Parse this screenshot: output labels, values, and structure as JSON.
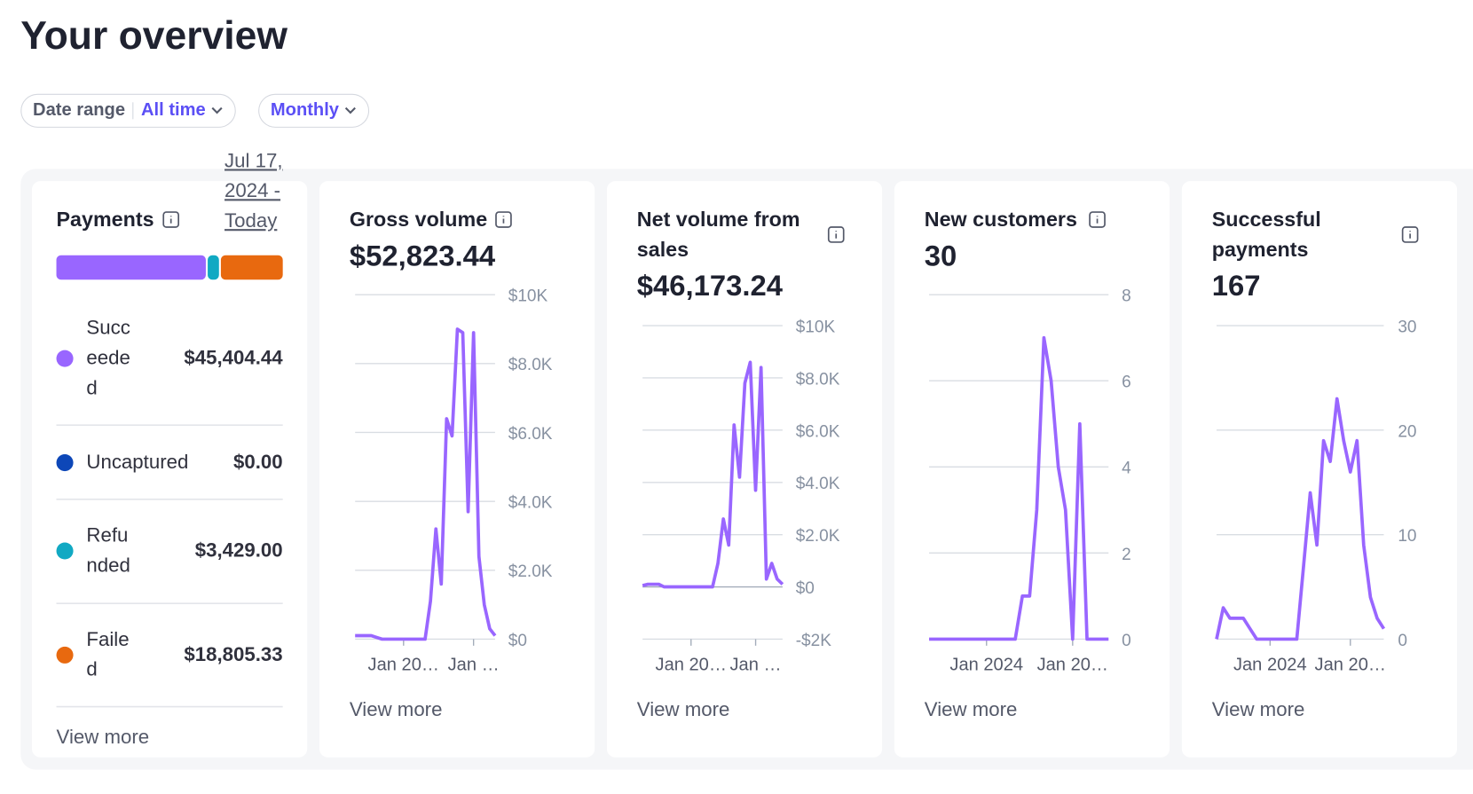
{
  "header": {
    "title": "Your overview"
  },
  "filters": {
    "date_range_label": "Date range",
    "date_range_value": "All time",
    "interval": "Monthly"
  },
  "payments": {
    "title": "Payments",
    "date_link": "Jul 17, 2024 - Today",
    "link": "View more",
    "segments": [
      {
        "name": "Succeeded",
        "value": 45404.44,
        "value_label": "$45,404.44",
        "color": "#9966ff"
      },
      {
        "name": "Uncaptured",
        "value": 0,
        "value_label": "$0.00",
        "color": "#0d47b8"
      },
      {
        "name": "Refunded",
        "value": 3429,
        "value_label": "$3,429.00",
        "color": "#11a9c3"
      },
      {
        "name": "Failed",
        "value": 18805.33,
        "value_label": "$18,805.33",
        "color": "#e8690f"
      }
    ]
  },
  "cards": [
    {
      "title": "Gross volume",
      "total": "$52,823.44",
      "link": "View more",
      "chart": {
        "type": "line",
        "color": "#9966ff",
        "categories": [
          null,
          null,
          null,
          null,
          null,
          null,
          null,
          null,
          null,
          "Jan 20…",
          null,
          null,
          null,
          null,
          null,
          null,
          null,
          null,
          null,
          null,
          null,
          null,
          "Jan …",
          null,
          null,
          null,
          null
        ],
        "values": [
          100,
          100,
          100,
          100,
          50,
          0,
          0,
          0,
          0,
          0,
          0,
          0,
          0,
          0,
          1100,
          3200,
          1600,
          6400,
          5900,
          9000,
          8900,
          3700,
          8900,
          2400,
          1000,
          300,
          100
        ],
        "ylim": [
          0,
          10000
        ],
        "yticks": [
          {
            "value": 0,
            "label": "$0"
          },
          {
            "value": 2000,
            "label": "$2.0K"
          },
          {
            "value": 4000,
            "label": "$4.0K"
          },
          {
            "value": 6000,
            "label": "$6.0K"
          },
          {
            "value": 8000,
            "label": "$8.0K"
          },
          {
            "value": 10000,
            "label": "$10K"
          }
        ]
      }
    },
    {
      "title": "Net volume from sales",
      "total": "$46,173.24",
      "link": "View more",
      "chart": {
        "type": "line",
        "color": "#9966ff",
        "categories": [
          null,
          null,
          null,
          null,
          null,
          null,
          null,
          null,
          null,
          "Jan 20…",
          null,
          null,
          null,
          null,
          null,
          null,
          null,
          null,
          null,
          null,
          null,
          "Jan …",
          null,
          null,
          null,
          null,
          null
        ],
        "values": [
          50,
          100,
          100,
          100,
          0,
          0,
          0,
          0,
          0,
          0,
          0,
          0,
          0,
          0,
          900,
          2600,
          1600,
          6200,
          4200,
          7800,
          8600,
          3700,
          8400,
          300,
          900,
          300,
          100
        ],
        "ylim": [
          -2000,
          10000
        ],
        "yticks": [
          {
            "value": -2000,
            "label": "-$2K"
          },
          {
            "value": 0,
            "label": "$0"
          },
          {
            "value": 2000,
            "label": "$2.0K"
          },
          {
            "value": 4000,
            "label": "$4.0K"
          },
          {
            "value": 6000,
            "label": "$6.0K"
          },
          {
            "value": 8000,
            "label": "$8.0K"
          },
          {
            "value": 10000,
            "label": "$10K"
          }
        ]
      }
    },
    {
      "title": "New customers",
      "total": "30",
      "link": "View more",
      "chart": {
        "type": "line",
        "color": "#9966ff",
        "categories": [
          null,
          null,
          null,
          null,
          null,
          null,
          null,
          null,
          "Jan 2024",
          null,
          null,
          null,
          null,
          null,
          null,
          null,
          null,
          null,
          null,
          null,
          "Jan 20…",
          null,
          null,
          null,
          null,
          null
        ],
        "values": [
          0,
          0,
          0,
          0,
          0,
          0,
          0,
          0,
          0,
          0,
          0,
          0,
          0,
          1,
          1,
          3,
          7,
          6,
          4,
          3,
          0,
          5,
          0,
          0,
          0,
          0
        ],
        "ylim": [
          0,
          8
        ],
        "yticks": [
          0,
          2,
          4,
          6,
          8
        ]
      }
    },
    {
      "title": "Successful payments",
      "total": "167",
      "link": "View more",
      "chart": {
        "type": "line",
        "color": "#9966ff",
        "categories": [
          null,
          null,
          null,
          null,
          null,
          null,
          null,
          null,
          "Jan 2024",
          null,
          null,
          null,
          null,
          null,
          null,
          null,
          null,
          null,
          null,
          null,
          "Jan 20…",
          null,
          null,
          null,
          null,
          null
        ],
        "values": [
          0,
          3,
          2,
          2,
          2,
          1,
          0,
          0,
          0,
          0,
          0,
          0,
          0,
          7,
          14,
          9,
          19,
          17,
          23,
          19,
          16,
          19,
          9,
          4,
          2,
          1
        ],
        "ylim": [
          0,
          30
        ],
        "yticks": [
          0,
          10,
          20,
          30
        ]
      }
    }
  ]
}
